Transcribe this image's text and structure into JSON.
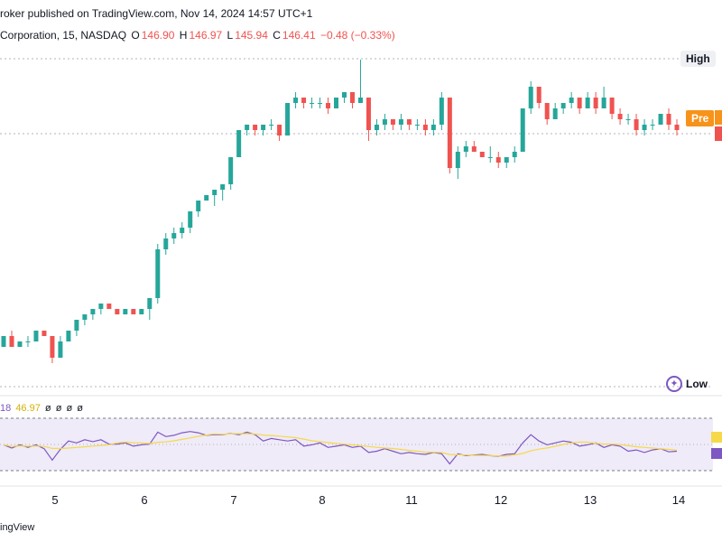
{
  "header": {
    "published_line": "roker published on TradingView.com, Nov 14, 2024 14:57 UTC+1",
    "symbol_line": "Corporation, 15, NASDAQ",
    "o_label": "O",
    "o_value": "146.90",
    "h_label": "H",
    "h_value": "146.97",
    "l_label": "L",
    "l_value": "145.94",
    "c_label": "C",
    "c_value": "146.41",
    "change": "−0.48 (−0.33%)"
  },
  "price_tags": {
    "high": "High",
    "pre": "Pre",
    "low": "Low"
  },
  "rsi": {
    "period": "18",
    "value": "46.97",
    "extras": [
      "ø",
      "ø",
      "ø",
      "ø"
    ],
    "upper_level": 70,
    "lower_level": 30,
    "fill_color": "#7e57c2"
  },
  "x_axis_labels": [
    "5",
    "6",
    "7",
    "8",
    "11",
    "12",
    "13",
    "14"
  ],
  "footer": {
    "brand": "ingView"
  },
  "colors": {
    "up": "#26a69a",
    "down": "#ef5350",
    "rsi": "#7e57c2",
    "rsi_ma": "#f5d94a",
    "pre": "#f7931a"
  },
  "chart_data": {
    "type": "candlestick",
    "title": "",
    "xlabel": "",
    "ylabel": "",
    "x": [
      "5",
      "6",
      "7",
      "8",
      "11",
      "12",
      "13",
      "14"
    ],
    "series": [
      {
        "values": [
          [
            0,
            0.0,
            0.02,
            0.0,
            0.02
          ],
          [
            0,
            0.02,
            0.03,
            0.0,
            0.0
          ],
          [
            0,
            0.0,
            0.01,
            0.0,
            0.01
          ],
          [
            0,
            0.01,
            0.02,
            0.0,
            0.01
          ],
          [
            0,
            0.01,
            0.03,
            0.01,
            0.03
          ],
          [
            0,
            0.03,
            0.03,
            0.02,
            0.02
          ],
          [
            0,
            0.02,
            0.02,
            -0.03,
            -0.02
          ],
          [
            0,
            -0.02,
            0.02,
            -0.02,
            0.01
          ],
          [
            0,
            0.01,
            0.03,
            0.01,
            0.03
          ],
          [
            0,
            0.03,
            0.05,
            0.02,
            0.05
          ],
          [
            0,
            0.05,
            0.06,
            0.04,
            0.06
          ],
          [
            0,
            0.06,
            0.07,
            0.05,
            0.07
          ],
          [
            0,
            0.07,
            0.08,
            0.06,
            0.08
          ],
          [
            0,
            0.08,
            0.08,
            0.07,
            0.07
          ],
          [
            0,
            0.07,
            0.07,
            0.06,
            0.06
          ],
          [
            0,
            0.06,
            0.07,
            0.06,
            0.07
          ],
          [
            0,
            0.07,
            0.07,
            0.06,
            0.06
          ],
          [
            0,
            0.06,
            0.07,
            0.06,
            0.07
          ],
          [
            0,
            0.07,
            0.09,
            0.05,
            0.09
          ],
          [
            0,
            0.09,
            0.19,
            0.08,
            0.18
          ],
          [
            0,
            0.18,
            0.21,
            0.17,
            0.2
          ],
          [
            0,
            0.2,
            0.22,
            0.19,
            0.21
          ],
          [
            0,
            0.21,
            0.23,
            0.2,
            0.22
          ],
          [
            0,
            0.22,
            0.25,
            0.21,
            0.25
          ],
          [
            0,
            0.25,
            0.27,
            0.24,
            0.27
          ],
          [
            0,
            0.27,
            0.28,
            0.27,
            0.28
          ],
          [
            0,
            0.28,
            0.29,
            0.26,
            0.29
          ],
          [
            0,
            0.29,
            0.3,
            0.27,
            0.3
          ],
          [
            0,
            0.3,
            0.35,
            0.29,
            0.35
          ],
          [
            0,
            0.35,
            0.4,
            0.35,
            0.4
          ],
          [
            0,
            0.4,
            0.41,
            0.39,
            0.41
          ],
          [
            0,
            0.41,
            0.41,
            0.39,
            0.4
          ],
          [
            0,
            0.4,
            0.41,
            0.39,
            0.41
          ],
          [
            0,
            0.41,
            0.42,
            0.4,
            0.41
          ],
          [
            0,
            0.41,
            0.41,
            0.38,
            0.39
          ],
          [
            0,
            0.39,
            0.45,
            0.39,
            0.45
          ],
          [
            0,
            0.45,
            0.47,
            0.44,
            0.46
          ],
          [
            0,
            0.46,
            0.46,
            0.44,
            0.45
          ],
          [
            0,
            0.45,
            0.46,
            0.44,
            0.45
          ],
          [
            0,
            0.45,
            0.46,
            0.44,
            0.45
          ],
          [
            0,
            0.45,
            0.46,
            0.43,
            0.44
          ],
          [
            0,
            0.44,
            0.46,
            0.44,
            0.46
          ],
          [
            0,
            0.46,
            0.47,
            0.45,
            0.47
          ],
          [
            0,
            0.47,
            0.47,
            0.44,
            0.45
          ],
          [
            0,
            0.45,
            0.53,
            0.45,
            0.46
          ],
          [
            0,
            0.46,
            0.46,
            0.38,
            0.4
          ],
          [
            0,
            0.4,
            0.42,
            0.39,
            0.41
          ],
          [
            0,
            0.41,
            0.43,
            0.4,
            0.42
          ],
          [
            0,
            0.42,
            0.42,
            0.4,
            0.41
          ],
          [
            0,
            0.41,
            0.43,
            0.4,
            0.42
          ],
          [
            0,
            0.42,
            0.42,
            0.4,
            0.41
          ],
          [
            0,
            0.41,
            0.42,
            0.4,
            0.41
          ],
          [
            0,
            0.41,
            0.42,
            0.39,
            0.4
          ],
          [
            0,
            0.4,
            0.42,
            0.39,
            0.41
          ],
          [
            0,
            0.41,
            0.47,
            0.4,
            0.46
          ],
          [
            0,
            0.46,
            0.46,
            0.32,
            0.33
          ],
          [
            0,
            0.33,
            0.37,
            0.31,
            0.36
          ],
          [
            0,
            0.36,
            0.38,
            0.35,
            0.37
          ],
          [
            0,
            0.37,
            0.38,
            0.36,
            0.36
          ],
          [
            0,
            0.36,
            0.36,
            0.35,
            0.35
          ],
          [
            0,
            0.35,
            0.37,
            0.34,
            0.35
          ],
          [
            0,
            0.35,
            0.36,
            0.33,
            0.34
          ],
          [
            0,
            0.34,
            0.35,
            0.33,
            0.35
          ],
          [
            0,
            0.35,
            0.37,
            0.34,
            0.36
          ],
          [
            0,
            0.36,
            0.44,
            0.36,
            0.44
          ],
          [
            0,
            0.44,
            0.49,
            0.43,
            0.48
          ],
          [
            0,
            0.48,
            0.48,
            0.44,
            0.45
          ],
          [
            0,
            0.45,
            0.45,
            0.41,
            0.42
          ],
          [
            0,
            0.42,
            0.45,
            0.42,
            0.44
          ],
          [
            0,
            0.44,
            0.45,
            0.43,
            0.45
          ],
          [
            0,
            0.45,
            0.47,
            0.44,
            0.46
          ],
          [
            0,
            0.46,
            0.46,
            0.43,
            0.44
          ],
          [
            0,
            0.44,
            0.47,
            0.44,
            0.46
          ],
          [
            0,
            0.46,
            0.47,
            0.43,
            0.44
          ],
          [
            0,
            0.44,
            0.48,
            0.44,
            0.46
          ],
          [
            0,
            0.46,
            0.46,
            0.42,
            0.43
          ],
          [
            0,
            0.43,
            0.44,
            0.41,
            0.42
          ],
          [
            0,
            0.42,
            0.43,
            0.41,
            0.42
          ],
          [
            0,
            0.42,
            0.43,
            0.39,
            0.4
          ],
          [
            0,
            0.4,
            0.42,
            0.39,
            0.41
          ],
          [
            0,
            0.41,
            0.42,
            0.4,
            0.41
          ],
          [
            0,
            0.41,
            0.43,
            0.41,
            0.43
          ],
          [
            0,
            0.43,
            0.44,
            0.4,
            0.41
          ],
          [
            0,
            0.41,
            0.42,
            0.39,
            0.4
          ]
        ]
      }
    ],
    "rsi_values": [
      0.52,
      0.47,
      0.52,
      0.48,
      0.52,
      0.46,
      0.28,
      0.45,
      0.58,
      0.55,
      0.6,
      0.57,
      0.6,
      0.53,
      0.53,
      0.55,
      0.5,
      0.52,
      0.53,
      0.72,
      0.65,
      0.67,
      0.71,
      0.73,
      0.71,
      0.67,
      0.68,
      0.68,
      0.7,
      0.68,
      0.72,
      0.68,
      0.58,
      0.62,
      0.6,
      0.58,
      0.6,
      0.5,
      0.52,
      0.55,
      0.48,
      0.5,
      0.52,
      0.48,
      0.5,
      0.4,
      0.42,
      0.46,
      0.42,
      0.38,
      0.4,
      0.38,
      0.37,
      0.4,
      0.38,
      0.22,
      0.38,
      0.35,
      0.36,
      0.37,
      0.35,
      0.34,
      0.37,
      0.38,
      0.55,
      0.68,
      0.58,
      0.52,
      0.55,
      0.58,
      0.56,
      0.5,
      0.52,
      0.55,
      0.48,
      0.52,
      0.5,
      0.42,
      0.44,
      0.4,
      0.44,
      0.46,
      0.41,
      0.42
    ]
  }
}
